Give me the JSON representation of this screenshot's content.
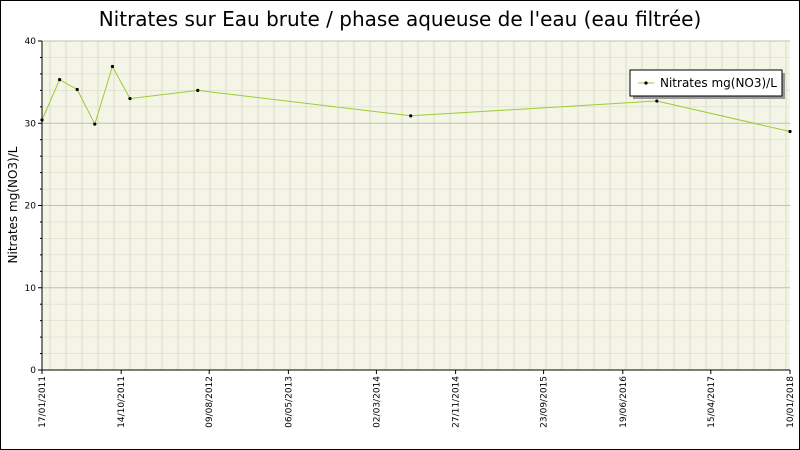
{
  "chart_data": {
    "type": "line",
    "title": "Nitrates sur Eau brute / phase aqueuse de l'eau (eau filtrée)",
    "xlabel": "",
    "ylabel": "Nitrates mg(NO3)/L",
    "ylim": [
      0,
      40
    ],
    "yticks": [
      "0",
      "10",
      "20",
      "30",
      "40"
    ],
    "xlim": [
      "2011-01-17",
      "2018-01-10"
    ],
    "xticks": [
      {
        "date": "2011-01-17",
        "label": "17/01/2011"
      },
      {
        "date": "2011-10-14",
        "label": "14/10/2011"
      },
      {
        "date": "2012-08-09",
        "label": "09/08/2012"
      },
      {
        "date": "2013-05-06",
        "label": "06/05/2013"
      },
      {
        "date": "2014-03-02",
        "label": "02/03/2014"
      },
      {
        "date": "2014-11-27",
        "label": "27/11/2014"
      },
      {
        "date": "2015-09-23",
        "label": "23/09/2015"
      },
      {
        "date": "2016-06-19",
        "label": "19/06/2016"
      },
      {
        "date": "2017-04-15",
        "label": "15/04/2017"
      },
      {
        "date": "2018-01-10",
        "label": "10/01/2018"
      }
    ],
    "grid": true,
    "legend_position": "top-right",
    "series": [
      {
        "name": "Nitrates mg(NO3)/L",
        "color": "#9acd32",
        "x": [
          "2011-01-17",
          "2011-03-18",
          "2011-05-17",
          "2011-07-16",
          "2011-09-14",
          "2011-11-13",
          "2012-07-01",
          "2014-06-27",
          "2016-10-13",
          "2018-01-10"
        ],
        "y": [
          30.4,
          35.3,
          34.1,
          29.9,
          36.9,
          33.0,
          34.0,
          30.9,
          32.7,
          29.0
        ]
      }
    ]
  }
}
